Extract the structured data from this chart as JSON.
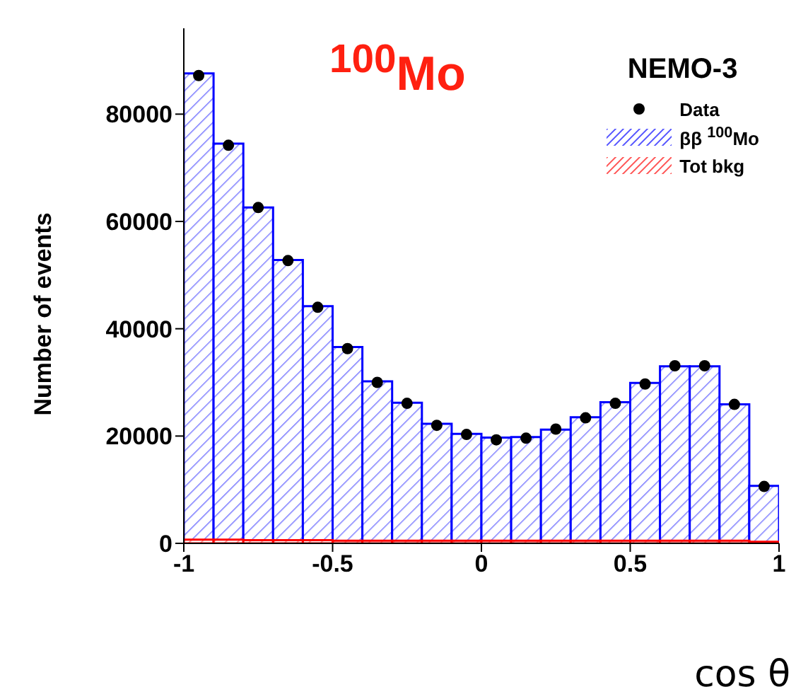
{
  "chart_data": {
    "type": "histogram",
    "xlabel": "cos θ",
    "ylabel": "Number of events",
    "legend_title": "NEMO-3",
    "annotations": [
      "$^{100}$Mo"
    ],
    "bins": [
      -1,
      -0.9,
      -0.8,
      -0.7,
      -0.6,
      -0.5,
      -0.4,
      -0.3,
      -0.2,
      -0.1,
      0,
      0.1,
      0.2,
      0.3,
      0.4,
      0.5,
      0.6,
      0.7,
      0.8,
      0.9,
      1
    ],
    "series": [
      {
        "name": "ββ $^{100}$Mo",
        "color": "#0000ff",
        "values": [
          87600,
          74500,
          62600,
          52800,
          44200,
          36600,
          30200,
          26200,
          22300,
          20400,
          19700,
          19800,
          21200,
          23500,
          26300,
          29900,
          33000,
          33000,
          25900,
          10700
        ]
      },
      {
        "name": "Tot bkg",
        "color": "#ff0000",
        "values": [
          700,
          700,
          600,
          600,
          600,
          500,
          500,
          500,
          500,
          500,
          500,
          500,
          500,
          500,
          500,
          500,
          500,
          500,
          500,
          300
        ]
      },
      {
        "name": "Data",
        "type": "scatter",
        "color": "#000000",
        "x": [
          -0.95,
          -0.85,
          -0.75,
          -0.65,
          -0.55,
          -0.45,
          -0.35,
          -0.25,
          -0.15,
          -0.05,
          0.05,
          0.15,
          0.25,
          0.35,
          0.45,
          0.55,
          0.65,
          0.75,
          0.85,
          0.95
        ],
        "values": [
          87200,
          74200,
          62600,
          52700,
          44000,
          36300,
          30000,
          26100,
          22000,
          20300,
          19300,
          19600,
          21300,
          23400,
          26100,
          29700,
          33100,
          33100,
          25900,
          10600
        ]
      }
    ],
    "xlim": [
      -1,
      1
    ],
    "xticks": [
      -1,
      -0.5,
      0,
      0.5,
      1
    ],
    "ylim": [
      0,
      96000
    ],
    "yticks": [
      0,
      20000,
      40000,
      60000,
      80000
    ],
    "marker": "circle",
    "legend": "top right"
  }
}
